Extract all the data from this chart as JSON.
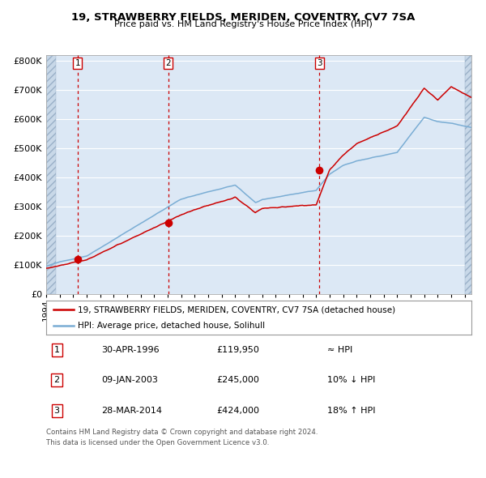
{
  "title": "19, STRAWBERRY FIELDS, MERIDEN, COVENTRY, CV7 7SA",
  "subtitle": "Price paid vs. HM Land Registry's House Price Index (HPI)",
  "legend_label_red": "19, STRAWBERRY FIELDS, MERIDEN, COVENTRY, CV7 7SA (detached house)",
  "legend_label_blue": "HPI: Average price, detached house, Solihull",
  "purchases": [
    {
      "num": 1,
      "date": "30-APR-1996",
      "price": 119950,
      "year": 1996.33,
      "relation": "≈ HPI"
    },
    {
      "num": 2,
      "date": "09-JAN-2003",
      "price": 245000,
      "year": 2003.03,
      "relation": "10% ↓ HPI"
    },
    {
      "num": 3,
      "date": "28-MAR-2014",
      "price": 424000,
      "year": 2014.24,
      "relation": "18% ↑ HPI"
    }
  ],
  "footer_line1": "Contains HM Land Registry data © Crown copyright and database right 2024.",
  "footer_line2": "This data is licensed under the Open Government Licence v3.0.",
  "red_color": "#cc0000",
  "blue_color": "#7aadd4",
  "bg_color": "#dce8f5",
  "grid_color": "#ffffff",
  "ylim": [
    0,
    820000
  ],
  "xlim_start": 1994.0,
  "xlim_end": 2025.5,
  "hpi_seed": 10,
  "prop_seed": 99
}
